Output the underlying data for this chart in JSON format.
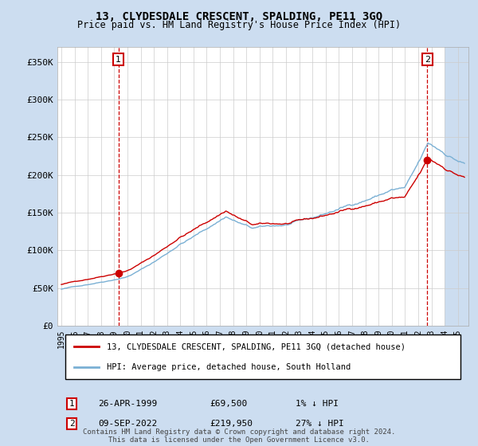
{
  "title": "13, CLYDESDALE CRESCENT, SPALDING, PE11 3GQ",
  "subtitle": "Price paid vs. HM Land Registry's House Price Index (HPI)",
  "background_color": "#ccddf0",
  "plot_bg_color": "#ffffff",
  "ylabel_ticks": [
    "£0",
    "£50K",
    "£100K",
    "£150K",
    "£200K",
    "£250K",
    "£300K",
    "£350K"
  ],
  "ytick_values": [
    0,
    50000,
    100000,
    150000,
    200000,
    250000,
    300000,
    350000
  ],
  "ylim": [
    0,
    370000
  ],
  "xlim_start": 1994.7,
  "xlim_end": 2025.8,
  "legend_line1": "13, CLYDESDALE CRESCENT, SPALDING, PE11 3GQ (detached house)",
  "legend_line2": "HPI: Average price, detached house, South Holland",
  "annotation1_date": "26-APR-1999",
  "annotation1_price": "£69,500",
  "annotation1_hpi": "1% ↓ HPI",
  "annotation2_date": "09-SEP-2022",
  "annotation2_price": "£219,950",
  "annotation2_hpi": "27% ↓ HPI",
  "footer": "Contains HM Land Registry data © Crown copyright and database right 2024.\nThis data is licensed under the Open Government Licence v3.0.",
  "sale1_x": 1999.32,
  "sale1_y": 69500,
  "sale2_x": 2022.69,
  "sale2_y": 219950,
  "hatch_start": 2024.0,
  "hpi_color": "#7ab0d4",
  "price_color": "#cc0000",
  "grid_color": "#cccccc",
  "vline_color": "#cc0000"
}
